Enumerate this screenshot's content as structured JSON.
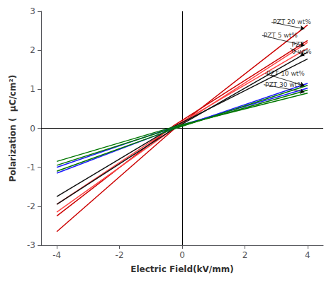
{
  "chart_data": {
    "type": "line",
    "xlabel": "Electric Field(kV/mm)",
    "ylabel": "Polarization (  μC/cm²)",
    "xlim": [
      -4.5,
      4.5
    ],
    "ylim": [
      -3,
      3
    ],
    "xticks": [
      -4,
      -2,
      0,
      2,
      4
    ],
    "yticks": [
      -3,
      -2,
      -1,
      0,
      1,
      2,
      3
    ],
    "grid": false,
    "series": [
      {
        "color": "#cc0000",
        "lines": [
          {
            "x": [
              -4.0,
              -0.3,
              4.0
            ],
            "y": [
              -2.65,
              -0.05,
              2.65
            ]
          },
          {
            "x": [
              -4.0,
              -0.3,
              4.0
            ],
            "y": [
              -2.25,
              0.05,
              2.25
            ]
          }
        ]
      },
      {
        "color": "#ff4444",
        "lines": [
          {
            "x": [
              -4.0,
              -0.3,
              4.0
            ],
            "y": [
              -2.15,
              -0.03,
              2.2
            ]
          },
          {
            "x": [
              -4.0,
              -0.3,
              4.0
            ],
            "y": [
              -1.95,
              0.03,
              2.05
            ]
          }
        ]
      },
      {
        "color": "#111111",
        "lines": [
          {
            "x": [
              -4.0,
              -0.3,
              4.0
            ],
            "y": [
              -1.95,
              -0.03,
              1.95
            ]
          },
          {
            "x": [
              -4.0,
              -0.3,
              4.0
            ],
            "y": [
              -1.75,
              0.03,
              1.78
            ]
          }
        ]
      },
      {
        "color": "#1a1aff",
        "lines": [
          {
            "x": [
              -4.0,
              -0.3,
              4.0
            ],
            "y": [
              -1.15,
              -0.02,
              1.15
            ]
          },
          {
            "x": [
              -4.0,
              -0.3,
              4.0
            ],
            "y": [
              -1.0,
              0.02,
              1.03
            ]
          }
        ]
      },
      {
        "color": "#007700",
        "lines": [
          {
            "x": [
              -4.0,
              -0.3,
              4.0
            ],
            "y": [
              -1.1,
              -0.03,
              1.1
            ]
          },
          {
            "x": [
              -4.0,
              -0.3,
              4.0
            ],
            "y": [
              -0.85,
              0.03,
              0.9
            ]
          },
          {
            "x": [
              -4.0,
              -0.3,
              4.0
            ],
            "y": [
              -0.95,
              0.0,
              0.98
            ]
          }
        ]
      }
    ],
    "annotations": [
      {
        "text": "PZT 20 wt%",
        "xy": [
          3.9,
          2.55
        ],
        "xytext": [
          2.85,
          2.72
        ]
      },
      {
        "text": "PZT 5 wt%",
        "xy": [
          3.9,
          2.12
        ],
        "xytext": [
          2.55,
          2.38
        ]
      },
      {
        "text": "PZT\n0 wt%",
        "xy": [
          3.9,
          1.86
        ],
        "xytext": [
          3.45,
          2.05
        ]
      },
      {
        "text": "PZT 10 wt%",
        "xy": [
          3.9,
          1.09
        ],
        "xytext": [
          2.65,
          1.4
        ]
      },
      {
        "text": "PZT 30 wt%",
        "xy": [
          3.9,
          0.93
        ],
        "xytext": [
          2.6,
          1.12
        ]
      }
    ]
  }
}
